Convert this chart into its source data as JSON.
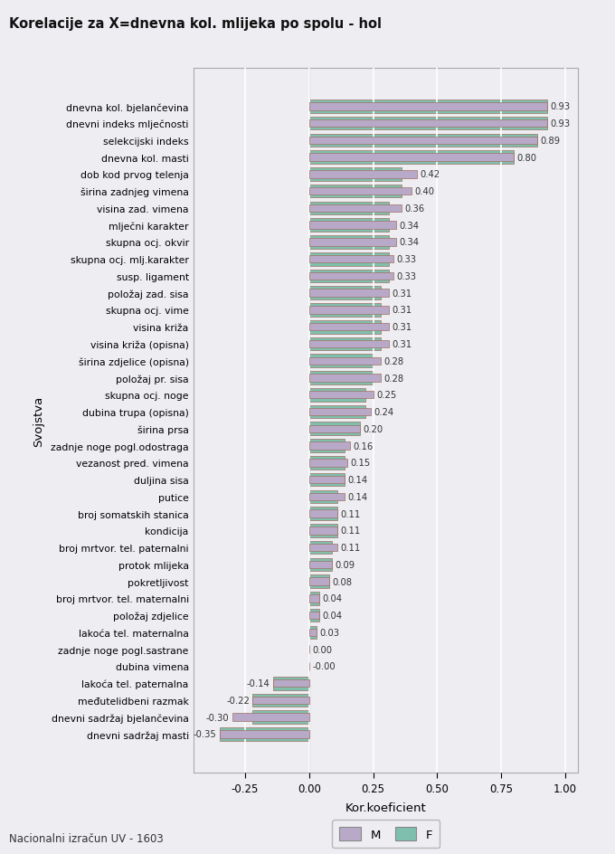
{
  "title": "Korelacije za X=dnevna kol. mlijeka po spolu - hol",
  "xlabel": "Kor.koeficient",
  "ylabel": "Svojstva",
  "footnote": "Nacionalni izračun UV - 1603",
  "legend_labels": [
    "M",
    "F"
  ],
  "color_M": "#b8a9c9",
  "color_F": "#7fbfad",
  "bar_edge_color": "#9e7060",
  "xlim": [
    -0.45,
    1.05
  ],
  "xticks": [
    -0.25,
    0.0,
    0.25,
    0.5,
    0.75,
    1.0
  ],
  "xtick_labels": [
    "-0.25",
    "0.00",
    "0.25",
    "0.50",
    "0.75",
    "1.00"
  ],
  "categories": [
    "dnevna kol. bjelančevina",
    "dnevni indeks mlječnosti",
    "selekcijski indeks",
    "dnevna kol. masti",
    "dob kod prvog telenja",
    "širina zadnjeg vimena",
    "visina zad. vimena",
    "mlječni karakter",
    "skupna ocj. okvir",
    "skupna ocj. mlj.karakter",
    "susp. ligament",
    "položaj zad. sisa",
    "skupna ocj. vime",
    "visina križa",
    "visina križa (opisna)",
    "širina zdjelice (opisna)",
    "položaj pr. sisa",
    "skupna ocj. noge",
    "dubina trupa (opisna)",
    "širina prsa",
    "zadnje noge pogl.odostraga",
    "vezanost pred. vimena",
    "duljina sisa",
    "putice",
    "broj somatskih stanica",
    "kondicija",
    "broj mrtvor. tel. paternalni",
    "protok mlijeka",
    "pokretljivost",
    "broj mrtvor. tel. maternalni",
    "položaj zdjelice",
    "lakoća tel. maternalna",
    "zadnje noge pogl.sastrane",
    "dubina vimena",
    "lakoća tel. paternalna",
    "međutelidbeni razmak",
    "dnevni sadržaj bjelančevina",
    "dnevni sadržaj masti"
  ],
  "values_F": [
    0.93,
    0.93,
    0.89,
    0.8,
    0.36,
    0.36,
    0.31,
    0.31,
    0.31,
    0.31,
    0.31,
    0.28,
    0.28,
    0.28,
    0.28,
    0.25,
    0.25,
    0.22,
    0.22,
    0.2,
    0.14,
    0.14,
    0.14,
    0.11,
    0.11,
    0.11,
    0.09,
    0.09,
    0.08,
    0.04,
    0.04,
    0.03,
    0.0,
    -0.0,
    -0.14,
    -0.22,
    -0.22,
    -0.35
  ],
  "values_M": [
    0.93,
    0.93,
    0.89,
    0.8,
    0.42,
    0.4,
    0.36,
    0.34,
    0.34,
    0.33,
    0.33,
    0.31,
    0.31,
    0.31,
    0.31,
    0.28,
    0.28,
    0.25,
    0.24,
    0.2,
    0.16,
    0.15,
    0.14,
    0.14,
    0.11,
    0.11,
    0.11,
    0.09,
    0.08,
    0.04,
    0.04,
    0.03,
    0.0,
    -0.0,
    -0.14,
    -0.22,
    -0.3,
    -0.35
  ],
  "labels": [
    "0.93",
    "0.93",
    "0.89",
    "0.80",
    "0.42",
    "0.40",
    "0.36",
    "0.34",
    "0.34",
    "0.33",
    "0.33",
    "0.31",
    "0.31",
    "0.31",
    "0.31",
    "0.28",
    "0.28",
    "0.25",
    "0.24",
    "0.20",
    "0.16",
    "0.15",
    "0.14",
    "0.14",
    "0.11",
    "0.11",
    "0.11",
    "0.09",
    "0.08",
    "0.04",
    "0.04",
    "0.03",
    "0.00",
    "-0.00",
    "-0.14",
    "-0.22",
    "-0.30",
    "-0.35"
  ],
  "bg_color": "#eeedf2",
  "plot_bg_color": "#eeedf2",
  "grid_color": "#ffffff"
}
